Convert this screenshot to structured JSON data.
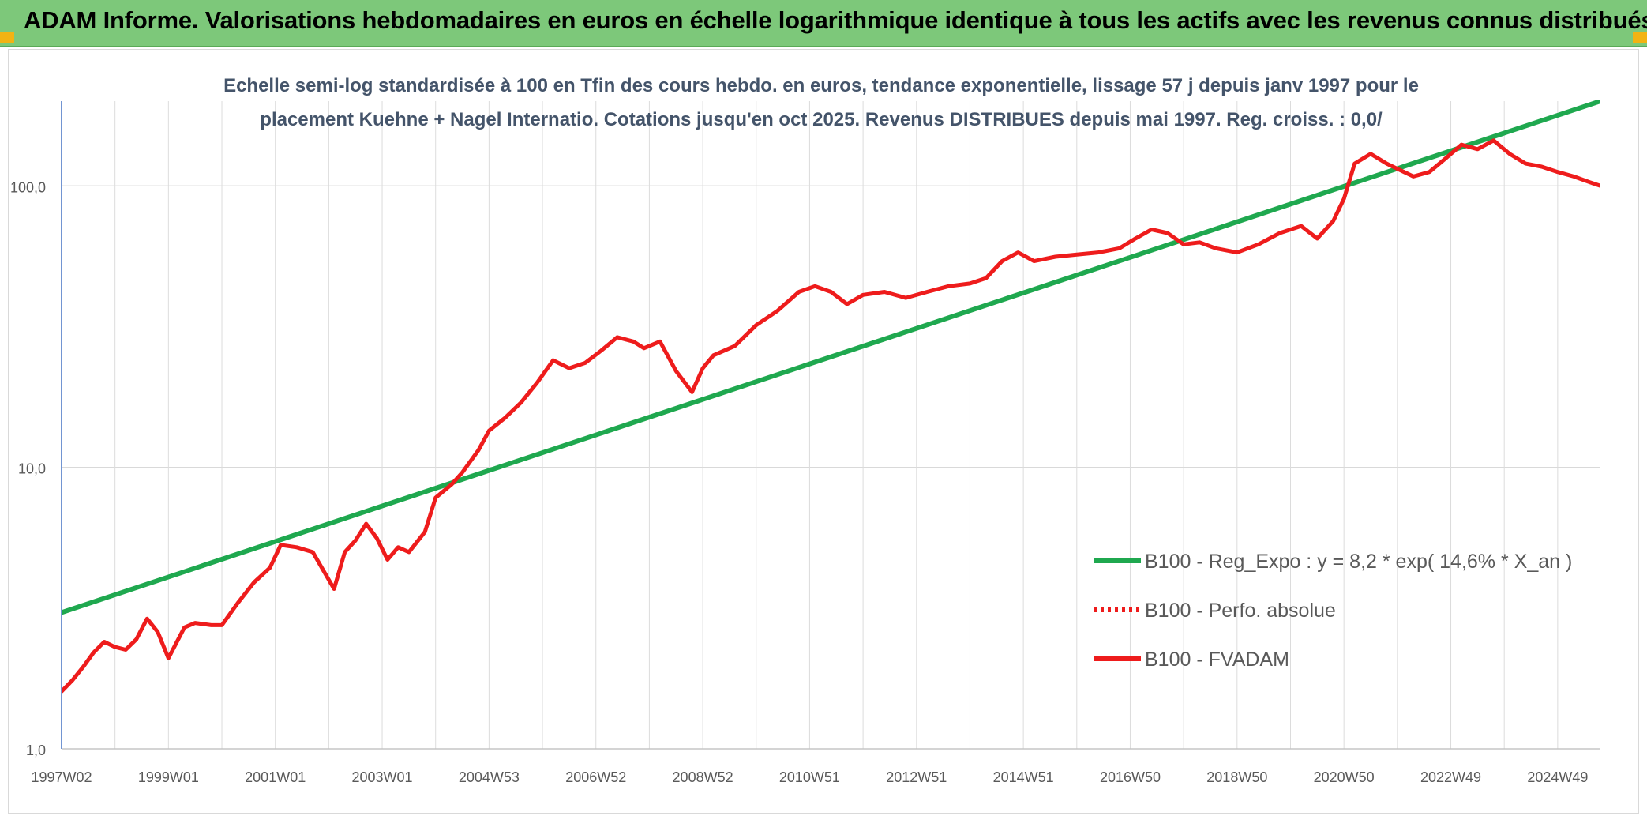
{
  "banner": {
    "title": "ADAM Informe. Valorisations hebdomadaires en euros en échelle logarithmique identique à tous les actifs avec les revenus connus distribués",
    "background_color": "#7dc87a",
    "corner_color": "#f2b313"
  },
  "chart_data": {
    "type": "line",
    "title_line1": "Echelle semi-log standardisée à 100 en Tfin des cours hebdo. en euros, tendance exponentielle, lissage 57 j depuis janv 1997 pour le",
    "title_line2": "placement Kuehne + Nagel Internatio. Cotations jusqu'en oct 2025. Revenus DISTRIBUES depuis mai 1997. Reg. croiss. : 0,0/",
    "y_scale": "log",
    "ylim": [
      1,
      200
    ],
    "y_ticks": [
      {
        "value": 1,
        "label": "1,0"
      },
      {
        "value": 10,
        "label": "10,0"
      },
      {
        "value": 100,
        "label": "100,0"
      }
    ],
    "xlim": [
      1997.0,
      2025.8
    ],
    "x_ticks": [
      {
        "value": 1997.0,
        "label": "1997W02"
      },
      {
        "value": 1999.0,
        "label": "1999W01"
      },
      {
        "value": 2001.0,
        "label": "2001W01"
      },
      {
        "value": 2003.0,
        "label": "2003W01"
      },
      {
        "value": 2005.0,
        "label": "2004W53"
      },
      {
        "value": 2007.0,
        "label": "2006W52"
      },
      {
        "value": 2009.0,
        "label": "2008W52"
      },
      {
        "value": 2011.0,
        "label": "2010W51"
      },
      {
        "value": 2013.0,
        "label": "2012W51"
      },
      {
        "value": 2015.0,
        "label": "2014W51"
      },
      {
        "value": 2017.0,
        "label": "2016W50"
      },
      {
        "value": 2019.0,
        "label": "2018W50"
      },
      {
        "value": 2021.0,
        "label": "2020W50"
      },
      {
        "value": 2023.0,
        "label": "2022W49"
      },
      {
        "value": 2025.0,
        "label": "2024W49"
      }
    ],
    "grid": true,
    "legend_position": "bottom-right",
    "series": [
      {
        "name": "B100 - Reg_Expo : y = 8,2 * exp( 14,6% *  X_an )",
        "color": "#1fa84f",
        "style": "solid",
        "x": [
          1997.0,
          2025.8
        ],
        "y": [
          3.05,
          200
        ]
      },
      {
        "name": "B100 - Perfo. absolue",
        "color": "#ee1c1c",
        "style": "dotted",
        "x": [],
        "y": []
      },
      {
        "name": "B100 - FVADAM",
        "color": "#ee1c1c",
        "style": "solid",
        "x": [
          1997.0,
          1997.2,
          1997.4,
          1997.6,
          1997.8,
          1998.0,
          1998.2,
          1998.4,
          1998.6,
          1998.8,
          1999.0,
          1999.3,
          1999.5,
          1999.8,
          2000.0,
          2000.3,
          2000.6,
          2000.9,
          2001.1,
          2001.4,
          2001.7,
          2001.9,
          2002.1,
          2002.3,
          2002.5,
          2002.7,
          2002.9,
          2003.1,
          2003.3,
          2003.5,
          2003.8,
          2004.0,
          2004.3,
          2004.5,
          2004.8,
          2005.0,
          2005.3,
          2005.6,
          2005.9,
          2006.2,
          2006.5,
          2006.8,
          2007.1,
          2007.4,
          2007.7,
          2007.9,
          2008.2,
          2008.5,
          2008.8,
          2009.0,
          2009.2,
          2009.6,
          2010.0,
          2010.4,
          2010.8,
          2011.1,
          2011.4,
          2011.7,
          2012.0,
          2012.4,
          2012.8,
          2013.2,
          2013.6,
          2014.0,
          2014.3,
          2014.6,
          2014.9,
          2015.2,
          2015.6,
          2016.0,
          2016.4,
          2016.8,
          2017.1,
          2017.4,
          2017.7,
          2018.0,
          2018.3,
          2018.6,
          2019.0,
          2019.4,
          2019.8,
          2020.2,
          2020.5,
          2020.8,
          2021.0,
          2021.2,
          2021.5,
          2021.8,
          2022.0,
          2022.3,
          2022.6,
          2022.9,
          2023.2,
          2023.5,
          2023.8,
          2024.1,
          2024.4,
          2024.7,
          2025.0,
          2025.3,
          2025.6,
          2025.8
        ],
        "y": [
          1.6,
          1.75,
          1.95,
          2.2,
          2.4,
          2.3,
          2.25,
          2.45,
          2.9,
          2.6,
          2.1,
          2.7,
          2.8,
          2.75,
          2.75,
          3.3,
          3.9,
          4.4,
          5.3,
          5.2,
          5.0,
          4.3,
          3.7,
          5.0,
          5.5,
          6.3,
          5.6,
          4.7,
          5.2,
          5.0,
          5.9,
          7.8,
          8.7,
          9.6,
          11.5,
          13.5,
          15.0,
          17.0,
          20.0,
          24.0,
          22.5,
          23.5,
          26.0,
          29.0,
          28.0,
          26.5,
          28.0,
          22.0,
          18.5,
          22.5,
          25.0,
          27.0,
          32.0,
          36.0,
          42.0,
          44.0,
          42.0,
          38.0,
          41.0,
          42.0,
          40.0,
          42.0,
          44.0,
          45.0,
          47.0,
          54.0,
          58.0,
          54.0,
          56.0,
          57.0,
          58.0,
          60.0,
          65.0,
          70.0,
          68.0,
          62.0,
          63.0,
          60.0,
          58.0,
          62.0,
          68.0,
          72.0,
          65.0,
          75.0,
          90.0,
          120.0,
          130.0,
          120.0,
          115.0,
          108.0,
          112.0,
          125.0,
          140.0,
          135.0,
          145.0,
          130.0,
          120.0,
          117.0,
          112.0,
          108.0,
          103.0,
          100.0
        ]
      }
    ]
  }
}
